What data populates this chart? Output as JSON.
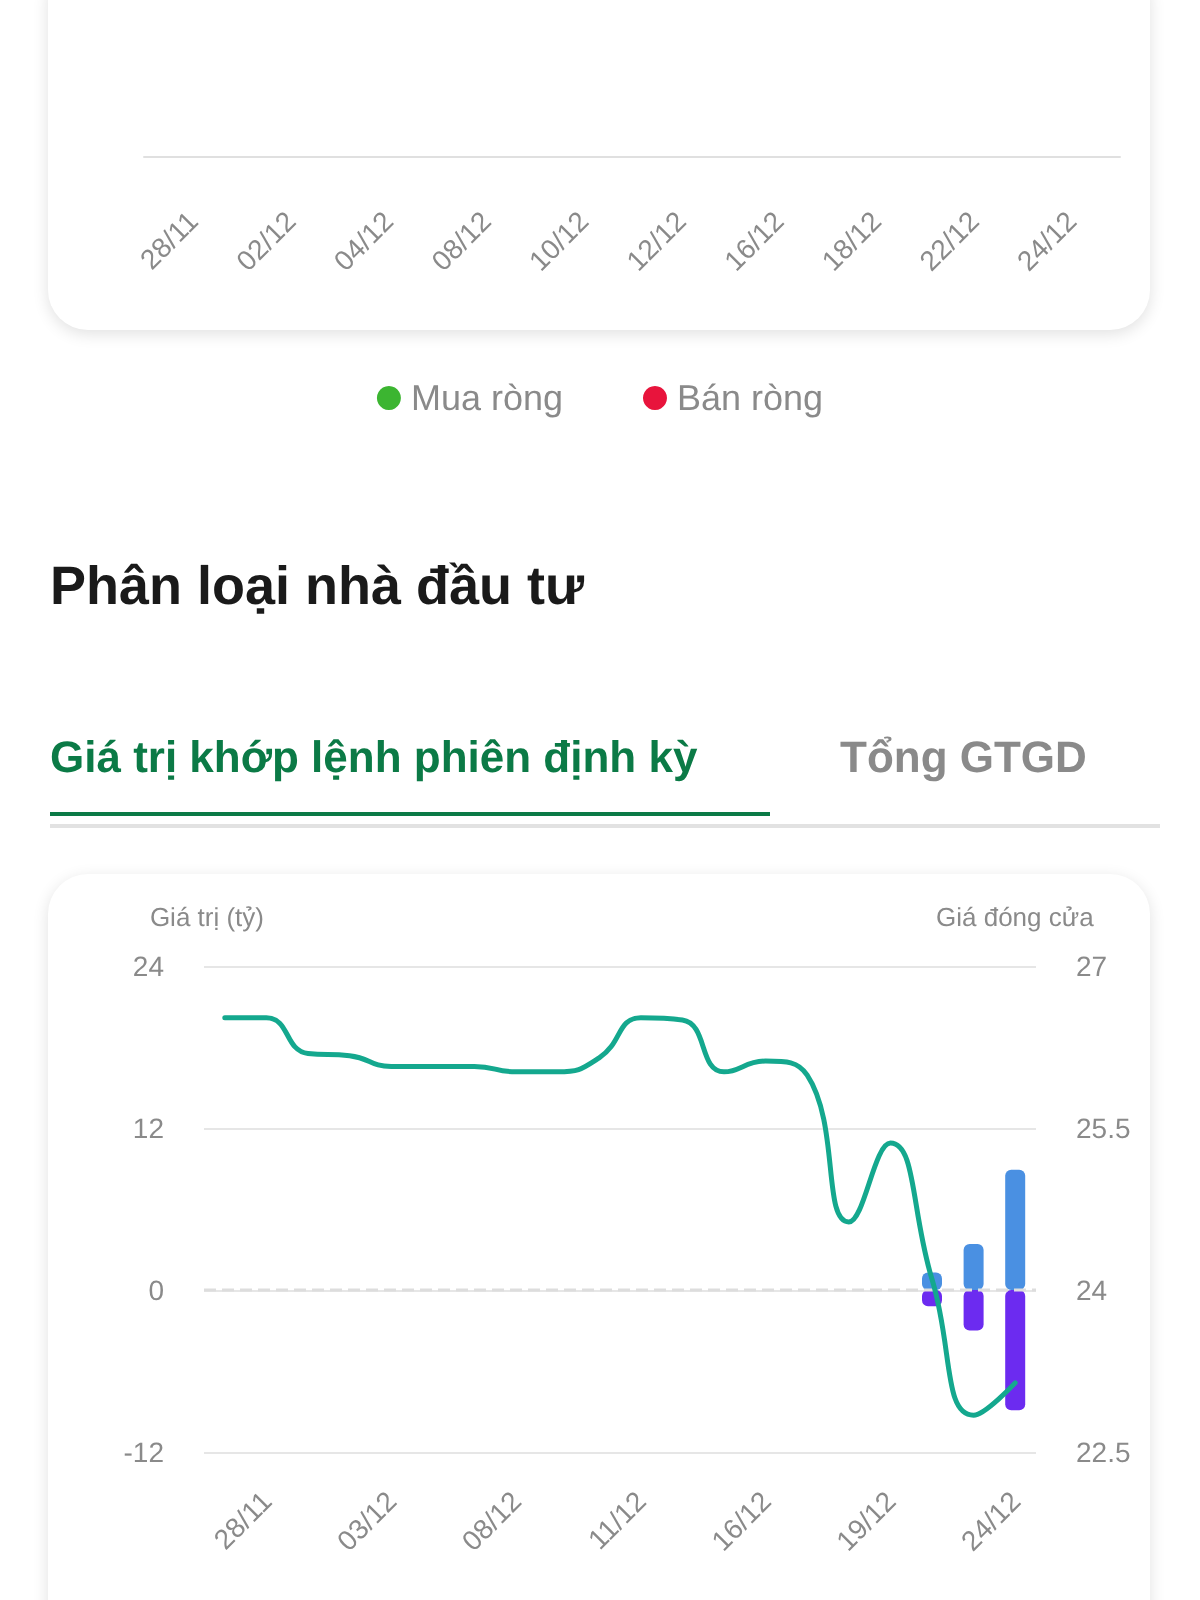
{
  "chart_data": [
    {
      "type": "other",
      "categories": [
        "28/11",
        "02/12",
        "04/12",
        "08/12",
        "10/12",
        "12/12",
        "16/12",
        "18/12",
        "22/12",
        "24/12"
      ],
      "series": [
        {
          "name": "Mua ròng",
          "color": "#3cb531",
          "values": [
            null,
            null,
            null,
            null,
            null,
            null,
            null,
            null,
            null,
            null
          ]
        },
        {
          "name": "Bán ròng",
          "color": "#e8143c",
          "values": [
            null,
            null,
            null,
            null,
            null,
            null,
            null,
            null,
            null,
            null
          ]
        }
      ],
      "legend": "bottom"
    },
    {
      "type": "bar",
      "title": "Phân loại nhà đầu tư",
      "annotations": [
        "Giá trị khớp lệnh phiên định kỳ",
        "Tổng GTGD"
      ],
      "ylabel": "Giá trị (tỷ)",
      "y2label": "Giá đóng cửa",
      "categories": [
        null,
        "28/11",
        null,
        null,
        "03/12",
        null,
        null,
        "08/12",
        null,
        null,
        "11/12",
        null,
        null,
        "16/12",
        null,
        null,
        "19/12",
        null,
        null,
        "24/12"
      ],
      "series": [
        {
          "color": "#4a90e2",
          "values": [
            null,
            null,
            null,
            null,
            null,
            null,
            null,
            null,
            null,
            null,
            null,
            null,
            null,
            null,
            null,
            null,
            null,
            1.3,
            3.4,
            8.9
          ]
        },
        {
          "color": "#6c2bf0",
          "values": [
            null,
            null,
            null,
            null,
            null,
            null,
            null,
            null,
            null,
            null,
            null,
            null,
            null,
            null,
            null,
            null,
            null,
            -1.2,
            -3.0,
            -8.9
          ]
        },
        {
          "type": "line",
          "axis": "y2",
          "color": "#14a88e",
          "values": [
            26.52,
            26.52,
            26.19,
            26.17,
            26.07,
            26.07,
            26.07,
            26.02,
            26.02,
            26.15,
            26.52,
            26.5,
            26.02,
            26.12,
            25.99,
            24.63,
            25.36,
            24.1,
            22.84,
            23.14
          ]
        }
      ],
      "stacked": true,
      "ylim": [
        -12,
        24
      ],
      "yticks": [
        -12,
        0,
        12,
        24
      ],
      "y2lim": [
        22.5,
        27
      ],
      "y2ticks": [
        22.5,
        24,
        25.5,
        27
      ],
      "grid": "y",
      "marker": "none",
      "line_style": "solid",
      "ref_lines": [
        {
          "axis": "y",
          "value": 0,
          "color": "#dddddd",
          "line_style": "dashed"
        }
      ],
      "legend": false
    }
  ]
}
